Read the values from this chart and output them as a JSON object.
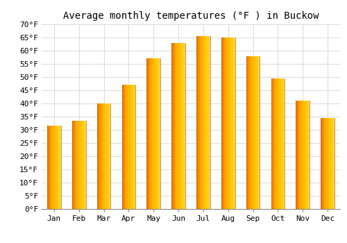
{
  "title": "Average monthly temperatures (°F ) in Buckow",
  "months": [
    "Jan",
    "Feb",
    "Mar",
    "Apr",
    "May",
    "Jun",
    "Jul",
    "Aug",
    "Sep",
    "Oct",
    "Nov",
    "Dec"
  ],
  "values": [
    31.5,
    33.5,
    40.0,
    47.0,
    57.0,
    63.0,
    65.5,
    65.0,
    58.0,
    49.5,
    41.0,
    34.5
  ],
  "bar_color_left": "#E87000",
  "bar_color_mid": "#FFA500",
  "bar_color_right": "#FFD040",
  "ylim": [
    0,
    70
  ],
  "ytick_step": 5,
  "background_color": "#FFFFFF",
  "grid_color": "#DDDDDD",
  "title_fontsize": 10,
  "tick_fontsize": 8,
  "font_family": "monospace"
}
